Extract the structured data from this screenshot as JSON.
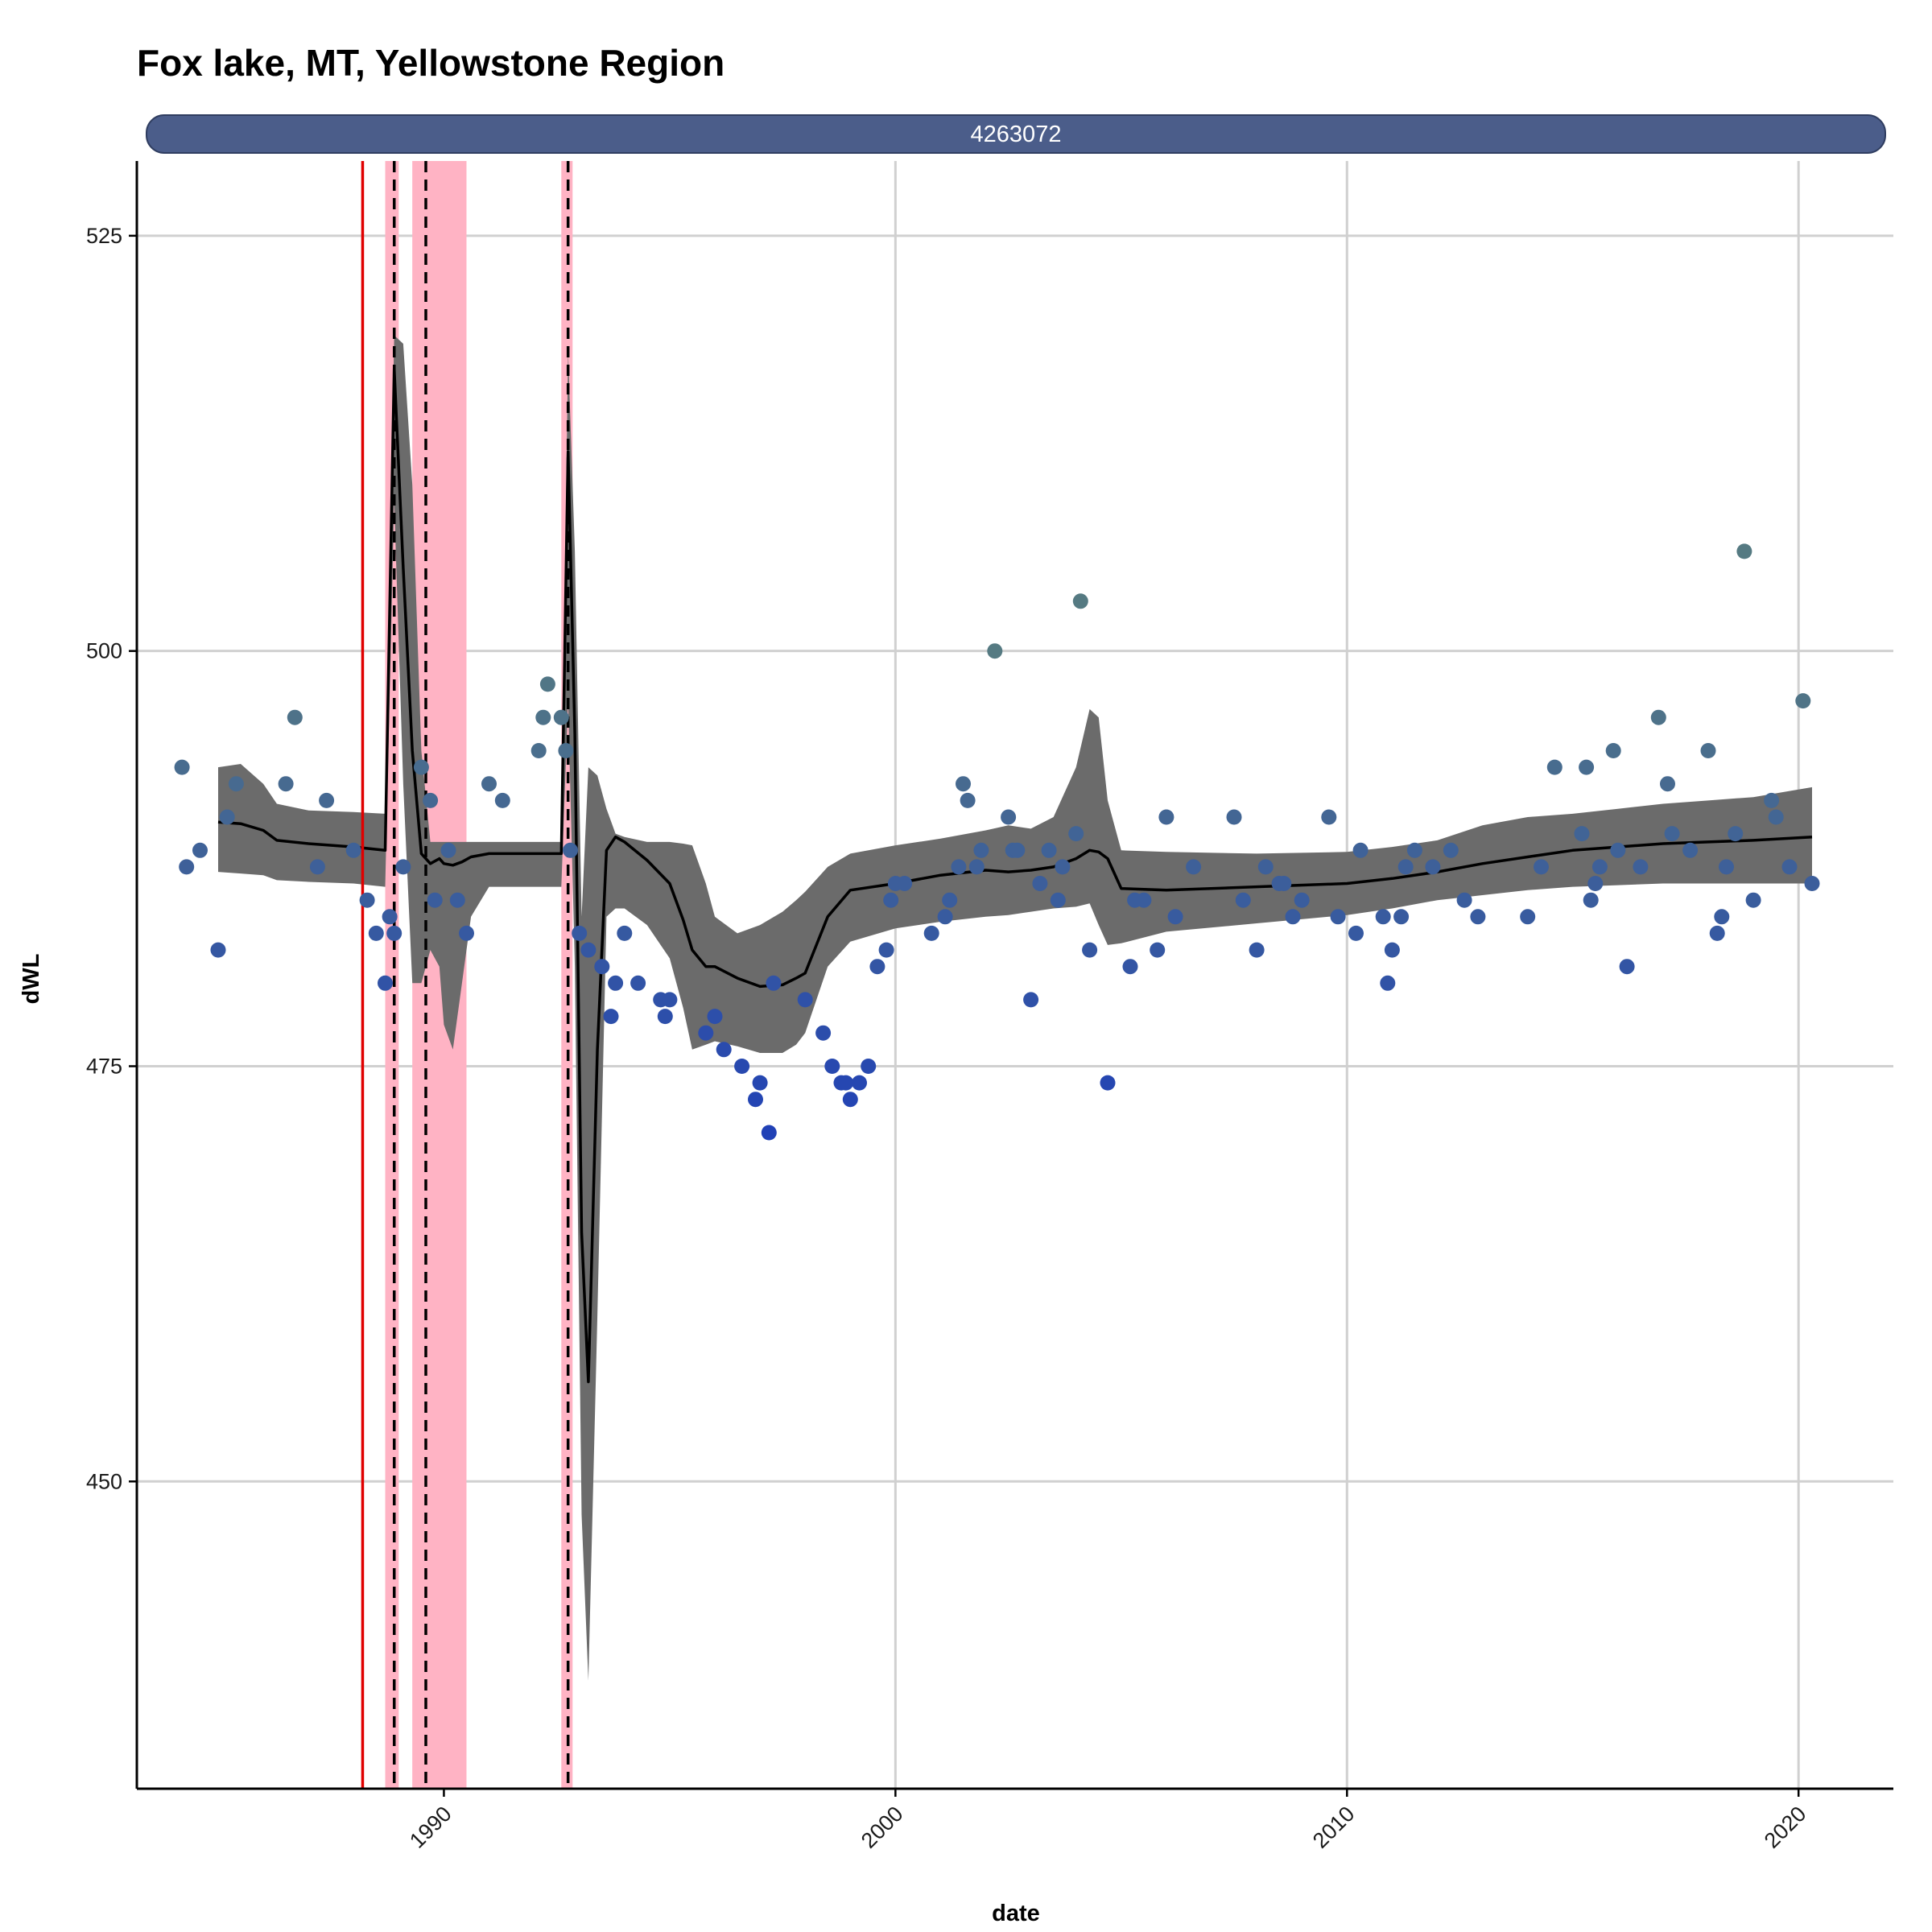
{
  "chart_data": {
    "type": "scatter",
    "title": "Fox lake, MT, Yellowstone Region",
    "facet_label": "4263072",
    "xlabel": "date",
    "ylabel": "dWL",
    "xlim": [
      1983.2,
      2022.1
    ],
    "ylim": [
      431.5,
      529.5
    ],
    "x_ticks": [
      1990,
      2000,
      2010,
      2020
    ],
    "y_ticks": [
      450,
      475,
      500,
      525
    ],
    "grid": true,
    "colors": {
      "strip_fill": "#4b5d8a",
      "band_fill": "#ffb3c4",
      "red_line": "#e00000",
      "ribbon": "#6b6b6b",
      "smooth_line": "#000000",
      "grid": "#d0d0d0",
      "point_low": "#1f3fb8",
      "point_high": "#557a82"
    },
    "red_lines": [
      1988.2
    ],
    "shaded_periods": [
      [
        1988.7,
        1989.0
      ],
      [
        1989.3,
        1990.5
      ],
      [
        1992.6,
        1992.85
      ]
    ],
    "dashed_lines": [
      1988.9,
      1989.6,
      1992.75
    ],
    "smooth": {
      "x": [
        1985.0,
        1985.5,
        1986.0,
        1986.3,
        1987.0,
        1988.0,
        1988.7,
        1988.9,
        1989.1,
        1989.3,
        1989.5,
        1989.7,
        1989.9,
        1990.0,
        1990.2,
        1990.4,
        1990.6,
        1991.0,
        1992.0,
        1992.6,
        1992.75,
        1992.9,
        1993.05,
        1993.2,
        1993.4,
        1993.6,
        1993.8,
        1994.0,
        1994.5,
        1995.0,
        1995.3,
        1995.5,
        1995.8,
        1996.0,
        1996.5,
        1997.0,
        1997.5,
        1997.8,
        1998.0,
        1998.5,
        1999.0,
        2000.0,
        2001.0,
        2002.0,
        2002.5,
        2003.0,
        2003.5,
        2004.0,
        2004.3,
        2004.5,
        2004.7,
        2005.0,
        2006.0,
        2008.0,
        2010.0,
        2011.0,
        2012.0,
        2013.0,
        2014.0,
        2015.0,
        2016.0,
        2017.0,
        2018.0,
        2019.0,
        2020.3
      ],
      "y": [
        489.7,
        489.6,
        489.2,
        488.6,
        488.4,
        488.2,
        488.0,
        517.0,
        505.0,
        494.0,
        487.8,
        487.2,
        487.5,
        487.2,
        487.1,
        487.3,
        487.6,
        487.8,
        487.8,
        487.8,
        512.0,
        495.0,
        465.0,
        456.0,
        476.0,
        488.0,
        488.8,
        488.5,
        487.4,
        486.0,
        483.8,
        482.0,
        481.0,
        481.0,
        480.3,
        479.8,
        479.9,
        480.3,
        480.6,
        484.0,
        485.6,
        486.0,
        486.5,
        486.8,
        486.7,
        486.8,
        487.0,
        487.5,
        488.0,
        487.9,
        487.5,
        485.7,
        485.6,
        485.8,
        486.0,
        486.3,
        486.7,
        487.2,
        487.6,
        488.0,
        488.2,
        488.4,
        488.5,
        488.6,
        488.8
      ],
      "lower": [
        486.7,
        486.6,
        486.5,
        486.2,
        486.1,
        486.0,
        485.8,
        509.0,
        492.0,
        480.0,
        480.0,
        482.0,
        481.0,
        477.5,
        476.0,
        480.0,
        484.0,
        485.8,
        485.8,
        485.8,
        497.0,
        481.0,
        448.0,
        438.0,
        460.0,
        484.0,
        484.5,
        484.5,
        483.5,
        481.5,
        478.5,
        476.0,
        476.3,
        476.5,
        476.2,
        475.8,
        475.8,
        476.3,
        477.0,
        481.0,
        482.5,
        483.3,
        483.7,
        484.0,
        484.1,
        484.3,
        484.5,
        484.6,
        484.8,
        483.5,
        482.3,
        482.4,
        483.1,
        483.6,
        484.1,
        484.5,
        485.0,
        485.3,
        485.6,
        485.8,
        485.9,
        486.0,
        486.0,
        486.0,
        486.0
      ],
      "upper": [
        493.0,
        493.2,
        492.0,
        490.8,
        490.4,
        490.3,
        490.2,
        519.0,
        518.5,
        510.0,
        494.0,
        488.5,
        488.5,
        488.5,
        488.5,
        488.5,
        488.5,
        488.5,
        488.5,
        488.5,
        518.0,
        506.0,
        484.0,
        493.0,
        492.5,
        490.5,
        489.0,
        488.8,
        488.5,
        488.5,
        488.4,
        488.3,
        486.0,
        484.0,
        483.0,
        483.5,
        484.3,
        485.0,
        485.5,
        487.0,
        487.8,
        488.3,
        488.7,
        489.2,
        489.5,
        489.3,
        490.0,
        493.0,
        496.5,
        496.0,
        491.0,
        488.0,
        487.9,
        487.8,
        487.9,
        488.2,
        488.6,
        489.5,
        490.0,
        490.2,
        490.5,
        490.8,
        491.0,
        491.2,
        491.8
      ]
    },
    "points": {
      "x": [
        1984.2,
        1984.3,
        1984.6,
        1985.0,
        1985.2,
        1985.4,
        1986.5,
        1986.7,
        1987.2,
        1987.4,
        1988.0,
        1988.3,
        1988.5,
        1988.7,
        1988.8,
        1988.9,
        1989.1,
        1989.5,
        1989.7,
        1989.8,
        1990.1,
        1990.3,
        1990.5,
        1991.0,
        1991.3,
        1992.1,
        1992.2,
        1992.3,
        1992.6,
        1992.7,
        1992.8,
        1993.0,
        1993.2,
        1993.5,
        1993.7,
        1993.8,
        1994.0,
        1994.3,
        1994.8,
        1994.9,
        1995.0,
        1995.8,
        1996.0,
        1996.2,
        1996.6,
        1996.9,
        1997.0,
        1997.2,
        1997.3,
        1998.0,
        1998.4,
        1998.6,
        1998.8,
        1998.9,
        1999.0,
        1999.2,
        1999.4,
        1999.6,
        1999.8,
        1999.9,
        2000.0,
        2000.2,
        2000.8,
        2001.1,
        2001.2,
        2001.4,
        2001.5,
        2001.6,
        2001.8,
        2001.9,
        2002.2,
        2002.5,
        2002.6,
        2002.7,
        2003.0,
        2003.2,
        2003.4,
        2003.6,
        2003.7,
        2004.0,
        2004.1,
        2004.3,
        2004.7,
        2005.2,
        2005.3,
        2005.5,
        2005.8,
        2006.0,
        2006.2,
        2006.6,
        2007.5,
        2007.7,
        2008.0,
        2008.2,
        2008.5,
        2008.6,
        2008.8,
        2009.0,
        2009.6,
        2009.8,
        2010.2,
        2010.3,
        2010.8,
        2010.9,
        2011.0,
        2011.2,
        2011.3,
        2011.5,
        2011.9,
        2012.3,
        2012.6,
        2012.9,
        2014.0,
        2014.3,
        2014.6,
        2015.2,
        2015.3,
        2015.4,
        2015.5,
        2015.6,
        2015.9,
        2016.0,
        2016.2,
        2016.5,
        2016.9,
        2017.1,
        2017.2,
        2017.6,
        2018.0,
        2018.2,
        2018.3,
        2018.4,
        2018.6,
        2018.8,
        2019.0,
        2019.4,
        2019.5,
        2019.8,
        2020.1,
        2020.3
      ],
      "y": [
        493,
        487,
        488,
        482,
        490,
        492,
        492,
        496,
        487,
        491,
        488,
        485,
        483,
        480,
        484,
        483,
        487,
        493,
        491,
        485,
        488,
        485,
        483,
        492,
        491,
        494,
        496,
        498,
        496,
        494,
        488,
        483,
        482,
        481,
        478,
        480,
        483,
        480,
        479,
        478,
        479,
        477,
        478,
        476,
        475,
        473,
        474,
        471,
        480,
        479,
        477,
        475,
        474,
        474,
        473,
        474,
        475,
        481,
        482,
        485,
        486,
        486,
        483,
        484,
        485,
        487,
        492,
        491,
        487,
        488,
        500,
        490,
        488,
        488,
        479,
        486,
        488,
        485,
        487,
        489,
        503,
        482,
        474,
        481,
        485,
        485,
        482,
        490,
        484,
        487,
        490,
        485,
        482,
        487,
        486,
        486,
        484,
        485,
        490,
        484,
        483,
        488,
        484,
        480,
        482,
        484,
        487,
        488,
        487,
        488,
        485,
        484,
        484,
        487,
        493,
        489,
        493,
        485,
        486,
        487,
        494,
        488,
        481,
        487,
        496,
        492,
        489,
        488,
        494,
        483,
        484,
        487,
        489,
        506,
        485,
        491,
        490,
        487,
        497,
        486
      ],
      "values_note": ""
    }
  }
}
